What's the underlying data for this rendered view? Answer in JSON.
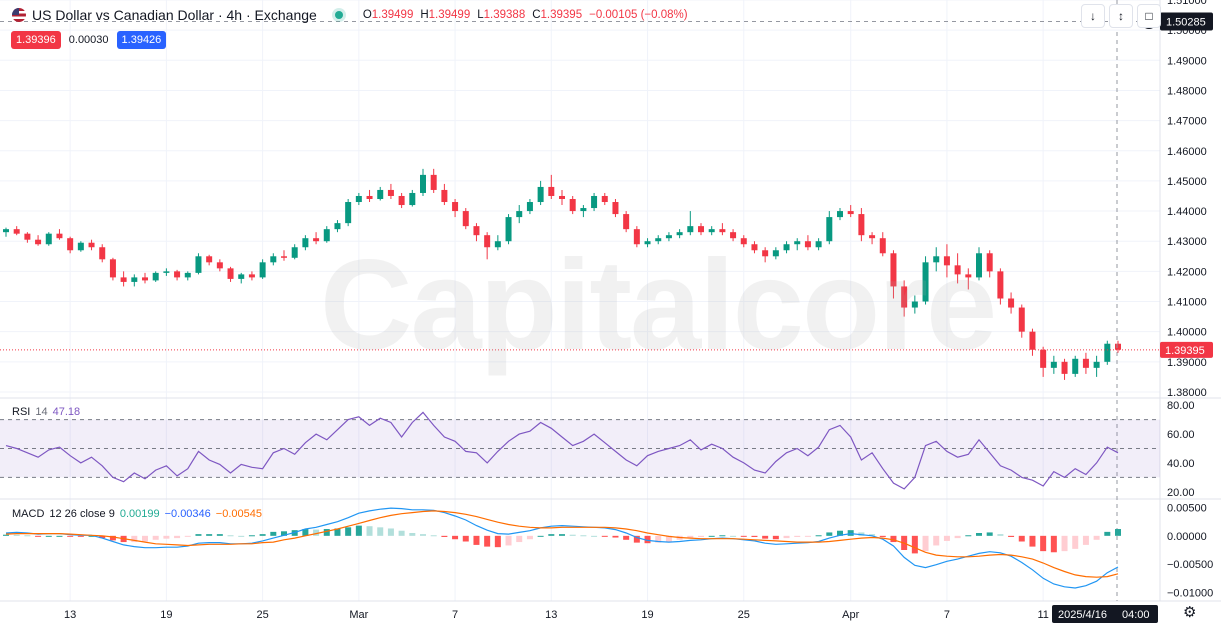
{
  "header": {
    "title": "US Dollar vs Canadian Dollar · 4h · Exchange",
    "ohlc": [
      {
        "k": "O",
        "v": "1.39499"
      },
      {
        "k": "H",
        "v": "1.39499"
      },
      {
        "k": "L",
        "v": "1.39388"
      },
      {
        "k": "C",
        "v": "1.39395"
      }
    ],
    "change": "−0.00105 (−0.08%)",
    "bid": "1.39396",
    "spread": "0.00030",
    "ask": "1.39426",
    "bid_color": "#f23645",
    "ask_color": "#2962ff"
  },
  "toolbar": {
    "icons": [
      "arrow-down-icon",
      "collapse-icon",
      "fullscreen-icon"
    ]
  },
  "watermark": "Capitalcore",
  "chart_data": {
    "type": "candlestick",
    "x_ticks": [
      "13",
      "19",
      "25",
      "Mar",
      "7",
      "13",
      "19",
      "25",
      "Apr",
      "7",
      "11"
    ],
    "cursor_date": "2025/4/16",
    "cursor_time": "04:00",
    "price_pane": {
      "ticks": [
        "1.51000",
        "1.50000",
        "1.49000",
        "1.48000",
        "1.47000",
        "1.46000",
        "1.45000",
        "1.44000",
        "1.43000",
        "1.42000",
        "1.41000",
        "1.40000",
        "1.39000",
        "1.38000"
      ],
      "ylim": [
        1.378,
        1.51
      ],
      "crosshair_price": "1.50285",
      "last_price": "1.39395",
      "candles": [
        [
          1.433,
          1.4345,
          1.4315,
          1.434
        ],
        [
          1.434,
          1.435,
          1.432,
          1.4325
        ],
        [
          1.4325,
          1.433,
          1.4295,
          1.4305
        ],
        [
          1.4305,
          1.432,
          1.4285,
          1.429
        ],
        [
          1.429,
          1.433,
          1.4285,
          1.4325
        ],
        [
          1.4325,
          1.434,
          1.4305,
          1.431
        ],
        [
          1.431,
          1.4315,
          1.426,
          1.427
        ],
        [
          1.427,
          1.43,
          1.4265,
          1.4295
        ],
        [
          1.4295,
          1.4305,
          1.427,
          1.428
        ],
        [
          1.428,
          1.429,
          1.423,
          1.424
        ],
        [
          1.424,
          1.4245,
          1.417,
          1.418
        ],
        [
          1.418,
          1.42,
          1.415,
          1.4165
        ],
        [
          1.4165,
          1.419,
          1.415,
          1.418
        ],
        [
          1.418,
          1.4195,
          1.416,
          1.417
        ],
        [
          1.417,
          1.42,
          1.4165,
          1.4195
        ],
        [
          1.4195,
          1.421,
          1.4185,
          1.42
        ],
        [
          1.42,
          1.4205,
          1.417,
          1.418
        ],
        [
          1.418,
          1.42,
          1.417,
          1.4195
        ],
        [
          1.4195,
          1.426,
          1.419,
          1.425
        ],
        [
          1.425,
          1.4255,
          1.422,
          1.423
        ],
        [
          1.423,
          1.424,
          1.42,
          1.421
        ],
        [
          1.421,
          1.4215,
          1.4165,
          1.4175
        ],
        [
          1.4175,
          1.4195,
          1.416,
          1.419
        ],
        [
          1.419,
          1.42,
          1.417,
          1.418
        ],
        [
          1.418,
          1.424,
          1.4175,
          1.423
        ],
        [
          1.423,
          1.426,
          1.422,
          1.425
        ],
        [
          1.425,
          1.427,
          1.4235,
          1.4245
        ],
        [
          1.4245,
          1.429,
          1.424,
          1.428
        ],
        [
          1.428,
          1.432,
          1.427,
          1.431
        ],
        [
          1.431,
          1.433,
          1.429,
          1.43
        ],
        [
          1.43,
          1.435,
          1.4295,
          1.434
        ],
        [
          1.434,
          1.437,
          1.433,
          1.436
        ],
        [
          1.436,
          1.444,
          1.435,
          1.443
        ],
        [
          1.443,
          1.446,
          1.442,
          1.445
        ],
        [
          1.445,
          1.447,
          1.443,
          1.444
        ],
        [
          1.444,
          1.448,
          1.4435,
          1.447
        ],
        [
          1.447,
          1.449,
          1.444,
          1.445
        ],
        [
          1.445,
          1.446,
          1.441,
          1.442
        ],
        [
          1.442,
          1.447,
          1.4415,
          1.446
        ],
        [
          1.446,
          1.454,
          1.445,
          1.452
        ],
        [
          1.452,
          1.454,
          1.446,
          1.447
        ],
        [
          1.447,
          1.449,
          1.442,
          1.443
        ],
        [
          1.443,
          1.444,
          1.438,
          1.44
        ],
        [
          1.44,
          1.441,
          1.434,
          1.435
        ],
        [
          1.435,
          1.436,
          1.43,
          1.432
        ],
        [
          1.432,
          1.433,
          1.424,
          1.428
        ],
        [
          1.428,
          1.432,
          1.427,
          1.43
        ],
        [
          1.43,
          1.439,
          1.429,
          1.438
        ],
        [
          1.438,
          1.442,
          1.436,
          1.44
        ],
        [
          1.44,
          1.444,
          1.439,
          1.443
        ],
        [
          1.443,
          1.45,
          1.442,
          1.448
        ],
        [
          1.448,
          1.452,
          1.444,
          1.445
        ],
        [
          1.445,
          1.447,
          1.442,
          1.444
        ],
        [
          1.444,
          1.445,
          1.439,
          1.44
        ],
        [
          1.44,
          1.442,
          1.438,
          1.441
        ],
        [
          1.441,
          1.446,
          1.44,
          1.445
        ],
        [
          1.445,
          1.446,
          1.442,
          1.443
        ],
        [
          1.443,
          1.444,
          1.438,
          1.439
        ],
        [
          1.439,
          1.44,
          1.433,
          1.434
        ],
        [
          1.434,
          1.435,
          1.428,
          1.429
        ],
        [
          1.429,
          1.431,
          1.428,
          1.43
        ],
        [
          1.43,
          1.432,
          1.429,
          1.431
        ],
        [
          1.431,
          1.433,
          1.43,
          1.432
        ],
        [
          1.432,
          1.434,
          1.431,
          1.433
        ],
        [
          1.433,
          1.44,
          1.432,
          1.435
        ],
        [
          1.435,
          1.436,
          1.432,
          1.433
        ],
        [
          1.433,
          1.435,
          1.432,
          1.434
        ],
        [
          1.434,
          1.436,
          1.432,
          1.433
        ],
        [
          1.433,
          1.434,
          1.43,
          1.431
        ],
        [
          1.431,
          1.432,
          1.428,
          1.429
        ],
        [
          1.429,
          1.43,
          1.426,
          1.427
        ],
        [
          1.427,
          1.428,
          1.423,
          1.425
        ],
        [
          1.425,
          1.428,
          1.424,
          1.427
        ],
        [
          1.427,
          1.43,
          1.426,
          1.429
        ],
        [
          1.429,
          1.431,
          1.427,
          1.43
        ],
        [
          1.43,
          1.432,
          1.427,
          1.428
        ],
        [
          1.428,
          1.431,
          1.427,
          1.43
        ],
        [
          1.43,
          1.44,
          1.429,
          1.438
        ],
        [
          1.438,
          1.441,
          1.437,
          1.44
        ],
        [
          1.44,
          1.442,
          1.438,
          1.439
        ],
        [
          1.439,
          1.441,
          1.43,
          1.432
        ],
        [
          1.432,
          1.433,
          1.429,
          1.431
        ],
        [
          1.431,
          1.433,
          1.425,
          1.426
        ],
        [
          1.426,
          1.427,
          1.411,
          1.415
        ],
        [
          1.415,
          1.417,
          1.405,
          1.408
        ],
        [
          1.408,
          1.412,
          1.406,
          1.41
        ],
        [
          1.41,
          1.425,
          1.409,
          1.423
        ],
        [
          1.423,
          1.428,
          1.42,
          1.425
        ],
        [
          1.425,
          1.429,
          1.418,
          1.422
        ],
        [
          1.422,
          1.426,
          1.416,
          1.419
        ],
        [
          1.419,
          1.421,
          1.414,
          1.418
        ],
        [
          1.418,
          1.428,
          1.417,
          1.426
        ],
        [
          1.426,
          1.427,
          1.418,
          1.42
        ],
        [
          1.42,
          1.421,
          1.409,
          1.411
        ],
        [
          1.411,
          1.413,
          1.406,
          1.408
        ],
        [
          1.408,
          1.409,
          1.398,
          1.4
        ],
        [
          1.4,
          1.401,
          1.392,
          1.394
        ],
        [
          1.394,
          1.395,
          1.385,
          1.388
        ],
        [
          1.388,
          1.392,
          1.386,
          1.39
        ],
        [
          1.39,
          1.391,
          1.384,
          1.386
        ],
        [
          1.386,
          1.392,
          1.385,
          1.391
        ],
        [
          1.391,
          1.393,
          1.386,
          1.388
        ],
        [
          1.388,
          1.392,
          1.385,
          1.39
        ],
        [
          1.39,
          1.397,
          1.389,
          1.396
        ],
        [
          1.396,
          1.397,
          1.393,
          1.394
        ]
      ]
    },
    "rsi_pane": {
      "label": "RSI",
      "period": "14",
      "value": "47.18",
      "ticks": [
        "80.00",
        "60.00",
        "40.00",
        "20.00"
      ],
      "ylim": [
        15,
        85
      ],
      "band": [
        30,
        70
      ],
      "values": [
        52,
        50,
        47,
        44,
        49,
        51,
        45,
        40,
        44,
        38,
        30,
        27,
        33,
        29,
        35,
        38,
        31,
        36,
        48,
        42,
        39,
        33,
        39,
        37,
        36,
        47,
        50,
        46,
        54,
        60,
        56,
        63,
        70,
        72,
        66,
        71,
        68,
        58,
        68,
        75,
        66,
        58,
        55,
        48,
        47,
        40,
        48,
        55,
        60,
        62,
        68,
        64,
        58,
        52,
        55,
        60,
        54,
        48,
        42,
        38,
        45,
        48,
        50,
        52,
        56,
        49,
        53,
        50,
        44,
        40,
        35,
        33,
        41,
        47,
        50,
        45,
        51,
        63,
        66,
        58,
        42,
        47,
        36,
        26,
        22,
        30,
        52,
        55,
        48,
        44,
        46,
        56,
        47,
        38,
        35,
        30,
        28,
        24,
        34,
        30,
        36,
        32,
        40,
        51,
        47
      ]
    },
    "macd_pane": {
      "label": "MACD",
      "params": "12 26 close 9",
      "values": [
        "0.00199",
        "−0.00346",
        "−0.00545"
      ],
      "value_colors": [
        "#22ab94",
        "#2962ff",
        "#ff6d00"
      ],
      "ticks": [
        "0.00500",
        "0.00000",
        "−0.00500",
        "−0.01000"
      ],
      "ylim": [
        -0.0115,
        0.0065
      ],
      "macd": [
        0.0005,
        0.0006,
        0.0005,
        0.0003,
        0.0004,
        0.0004,
        0.0002,
        0.0001,
        0.0001,
        -0.0004,
        -0.001,
        -0.0016,
        -0.0019,
        -0.0021,
        -0.0021,
        -0.002,
        -0.002,
        -0.0018,
        -0.0013,
        -0.0012,
        -0.0012,
        -0.0014,
        -0.0014,
        -0.0013,
        -0.0009,
        -0.0004,
        0.0001,
        0.0006,
        0.0012,
        0.0015,
        0.002,
        0.0025,
        0.0032,
        0.004,
        0.0044,
        0.0047,
        0.0049,
        0.0048,
        0.0046,
        0.0046,
        0.0045,
        0.0041,
        0.0035,
        0.0028,
        0.0018,
        0.001,
        0.0004,
        0.0003,
        0.0006,
        0.0009,
        0.0014,
        0.0017,
        0.0018,
        0.0017,
        0.0016,
        0.0015,
        0.0014,
        0.0011,
        0.0005,
        -0.0003,
        -0.0008,
        -0.001,
        -0.0011,
        -0.001,
        -0.0008,
        -0.0007,
        -0.0005,
        -0.0004,
        -0.0005,
        -0.0007,
        -0.0009,
        -0.0013,
        -0.0015,
        -0.0014,
        -0.0013,
        -0.0012,
        -0.001,
        -0.0004,
        0.0001,
        0.0004,
        0.0002,
        0.0,
        -0.0006,
        -0.0018,
        -0.0038,
        -0.0052,
        -0.0056,
        -0.0051,
        -0.0045,
        -0.0041,
        -0.0036,
        -0.0031,
        -0.0028,
        -0.003,
        -0.0036,
        -0.0047,
        -0.006,
        -0.0075,
        -0.0085,
        -0.009,
        -0.0092,
        -0.0088,
        -0.008,
        -0.0065,
        -0.0055
      ],
      "signal": [
        0.0003,
        0.0004,
        0.0004,
        0.0004,
        0.0004,
        0.0004,
        0.0003,
        0.0002,
        0.0001,
        0.0,
        -0.0002,
        -0.0005,
        -0.0008,
        -0.0011,
        -0.0014,
        -0.0015,
        -0.0016,
        -0.0017,
        -0.0016,
        -0.0015,
        -0.0015,
        -0.0015,
        -0.0014,
        -0.0014,
        -0.0012,
        -0.0011,
        -0.0007,
        -0.0004,
        0.0,
        0.0004,
        0.0008,
        0.0012,
        0.0017,
        0.0022,
        0.0027,
        0.0032,
        0.0036,
        0.0039,
        0.0041,
        0.0043,
        0.0044,
        0.0043,
        0.0041,
        0.0038,
        0.0034,
        0.0029,
        0.0024,
        0.002,
        0.0017,
        0.0015,
        0.0014,
        0.0014,
        0.0015,
        0.0015,
        0.0015,
        0.0015,
        0.0015,
        0.0014,
        0.0012,
        0.0009,
        0.0005,
        0.0002,
        -0.0001,
        -0.0003,
        -0.0004,
        -0.0005,
        -0.0005,
        -0.0005,
        -0.0005,
        -0.0006,
        -0.0007,
        -0.0008,
        -0.0009,
        -0.001,
        -0.0011,
        -0.0011,
        -0.0011,
        -0.001,
        -0.0008,
        -0.0006,
        -0.0004,
        -0.0003,
        -0.0004,
        -0.0007,
        -0.0013,
        -0.0021,
        -0.0029,
        -0.0034,
        -0.0036,
        -0.0037,
        -0.0037,
        -0.0036,
        -0.0034,
        -0.0033,
        -0.0034,
        -0.0037,
        -0.0041,
        -0.0048,
        -0.0056,
        -0.0063,
        -0.0069,
        -0.0072,
        -0.0073,
        -0.0072,
        -0.0067
      ]
    }
  }
}
